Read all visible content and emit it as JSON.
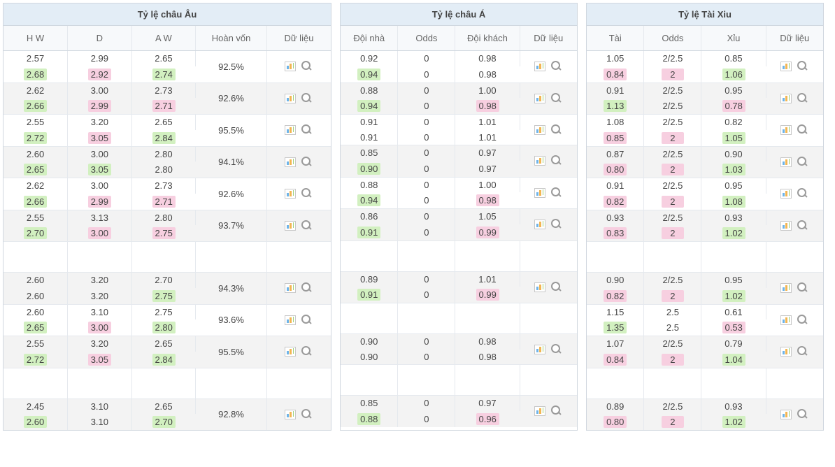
{
  "colors": {
    "header_bg": "#e3edf6",
    "subheader_bg": "#f7f9fb",
    "zebra_bg": "#f3f3f3",
    "border": "#d0d7df",
    "cell_border": "#e5e9ee",
    "highlight_up_bg": "#d2f0c0",
    "highlight_down_bg": "#f7cfe0",
    "text": "#444"
  },
  "eu": {
    "title": "Tỷ lệ châu Âu",
    "cols": {
      "hw": "H W",
      "d": "D",
      "aw": "A W",
      "payout": "Hoàn vốn",
      "data": "Dữ liệu"
    },
    "col_widths": {
      "hw": 90,
      "d": 90,
      "aw": 90,
      "payout": 100,
      "data": 90
    },
    "rows": [
      {
        "empty": false,
        "zebra": false,
        "payout": "92.5%",
        "a": {
          "hw": {
            "v": "2.57"
          },
          "d": {
            "v": "2.99"
          },
          "aw": {
            "v": "2.65"
          }
        },
        "b": {
          "hw": {
            "v": "2.68",
            "c": "up"
          },
          "d": {
            "v": "2.92",
            "c": "dn"
          },
          "aw": {
            "v": "2.74",
            "c": "up"
          }
        }
      },
      {
        "empty": false,
        "zebra": true,
        "payout": "92.6%",
        "a": {
          "hw": {
            "v": "2.62"
          },
          "d": {
            "v": "3.00"
          },
          "aw": {
            "v": "2.73"
          }
        },
        "b": {
          "hw": {
            "v": "2.66",
            "c": "up"
          },
          "d": {
            "v": "2.99",
            "c": "dn"
          },
          "aw": {
            "v": "2.71",
            "c": "dn"
          }
        }
      },
      {
        "empty": false,
        "zebra": false,
        "payout": "95.5%",
        "a": {
          "hw": {
            "v": "2.55"
          },
          "d": {
            "v": "3.20"
          },
          "aw": {
            "v": "2.65"
          }
        },
        "b": {
          "hw": {
            "v": "2.72",
            "c": "up"
          },
          "d": {
            "v": "3.05",
            "c": "dn"
          },
          "aw": {
            "v": "2.84",
            "c": "up"
          }
        }
      },
      {
        "empty": false,
        "zebra": true,
        "payout": "94.1%",
        "a": {
          "hw": {
            "v": "2.60"
          },
          "d": {
            "v": "3.00"
          },
          "aw": {
            "v": "2.80"
          }
        },
        "b": {
          "hw": {
            "v": "2.65",
            "c": "up"
          },
          "d": {
            "v": "3.05",
            "c": "up"
          },
          "aw": {
            "v": "2.80"
          }
        }
      },
      {
        "empty": false,
        "zebra": false,
        "payout": "92.6%",
        "a": {
          "hw": {
            "v": "2.62"
          },
          "d": {
            "v": "3.00"
          },
          "aw": {
            "v": "2.73"
          }
        },
        "b": {
          "hw": {
            "v": "2.66",
            "c": "up"
          },
          "d": {
            "v": "2.99",
            "c": "dn"
          },
          "aw": {
            "v": "2.71",
            "c": "dn"
          }
        }
      },
      {
        "empty": false,
        "zebra": true,
        "payout": "93.7%",
        "a": {
          "hw": {
            "v": "2.55"
          },
          "d": {
            "v": "3.13"
          },
          "aw": {
            "v": "2.80"
          }
        },
        "b": {
          "hw": {
            "v": "2.70",
            "c": "up"
          },
          "d": {
            "v": "3.00",
            "c": "dn"
          },
          "aw": {
            "v": "2.75",
            "c": "dn"
          }
        }
      },
      {
        "empty": true,
        "zebra": false
      },
      {
        "empty": false,
        "zebra": true,
        "payout": "94.3%",
        "a": {
          "hw": {
            "v": "2.60"
          },
          "d": {
            "v": "3.20"
          },
          "aw": {
            "v": "2.70"
          }
        },
        "b": {
          "hw": {
            "v": "2.60"
          },
          "d": {
            "v": "3.20"
          },
          "aw": {
            "v": "2.75",
            "c": "up"
          }
        }
      },
      {
        "empty": false,
        "zebra": false,
        "payout": "93.6%",
        "a": {
          "hw": {
            "v": "2.60"
          },
          "d": {
            "v": "3.10"
          },
          "aw": {
            "v": "2.75"
          }
        },
        "b": {
          "hw": {
            "v": "2.65",
            "c": "up"
          },
          "d": {
            "v": "3.00",
            "c": "dn"
          },
          "aw": {
            "v": "2.80",
            "c": "up"
          }
        }
      },
      {
        "empty": false,
        "zebra": true,
        "payout": "95.5%",
        "a": {
          "hw": {
            "v": "2.55"
          },
          "d": {
            "v": "3.20"
          },
          "aw": {
            "v": "2.65"
          }
        },
        "b": {
          "hw": {
            "v": "2.72",
            "c": "up"
          },
          "d": {
            "v": "3.05",
            "c": "dn"
          },
          "aw": {
            "v": "2.84",
            "c": "up"
          }
        }
      },
      {
        "empty": true,
        "zebra": false
      },
      {
        "empty": false,
        "zebra": true,
        "payout": "92.8%",
        "a": {
          "hw": {
            "v": "2.45"
          },
          "d": {
            "v": "3.10"
          },
          "aw": {
            "v": "2.65"
          }
        },
        "b": {
          "hw": {
            "v": "2.60",
            "c": "up"
          },
          "d": {
            "v": "3.10"
          },
          "aw": {
            "v": "2.70",
            "c": "up"
          }
        }
      }
    ]
  },
  "asia": {
    "title": "Tỷ lệ châu Á",
    "cols": {
      "home": "Đội nhà",
      "odds": "Odds",
      "away": "Đội khách",
      "data": "Dữ liệu"
    },
    "col_widths": {
      "home": 80,
      "odds": 80,
      "away": 90,
      "data": 80
    },
    "rows": [
      {
        "empty": false,
        "zebra": false,
        "a": {
          "h": {
            "v": "0.92"
          },
          "o": {
            "v": "0"
          },
          "aw": {
            "v": "0.98"
          }
        },
        "b": {
          "h": {
            "v": "0.94",
            "c": "up"
          },
          "o": {
            "v": "0"
          },
          "aw": {
            "v": "0.98"
          }
        }
      },
      {
        "empty": false,
        "zebra": true,
        "a": {
          "h": {
            "v": "0.88"
          },
          "o": {
            "v": "0"
          },
          "aw": {
            "v": "1.00"
          }
        },
        "b": {
          "h": {
            "v": "0.94",
            "c": "up"
          },
          "o": {
            "v": "0"
          },
          "aw": {
            "v": "0.98",
            "c": "dn"
          }
        }
      },
      {
        "empty": false,
        "zebra": false,
        "a": {
          "h": {
            "v": "0.91"
          },
          "o": {
            "v": "0"
          },
          "aw": {
            "v": "1.01"
          }
        },
        "b": {
          "h": {
            "v": "0.91"
          },
          "o": {
            "v": "0"
          },
          "aw": {
            "v": "1.01"
          }
        }
      },
      {
        "empty": false,
        "zebra": true,
        "a": {
          "h": {
            "v": "0.85"
          },
          "o": {
            "v": "0"
          },
          "aw": {
            "v": "0.97"
          }
        },
        "b": {
          "h": {
            "v": "0.90",
            "c": "up"
          },
          "o": {
            "v": "0"
          },
          "aw": {
            "v": "0.97"
          }
        }
      },
      {
        "empty": false,
        "zebra": false,
        "a": {
          "h": {
            "v": "0.88"
          },
          "o": {
            "v": "0"
          },
          "aw": {
            "v": "1.00"
          }
        },
        "b": {
          "h": {
            "v": "0.94",
            "c": "up"
          },
          "o": {
            "v": "0"
          },
          "aw": {
            "v": "0.98",
            "c": "dn"
          }
        }
      },
      {
        "empty": false,
        "zebra": true,
        "a": {
          "h": {
            "v": "0.86"
          },
          "o": {
            "v": "0"
          },
          "aw": {
            "v": "1.05"
          }
        },
        "b": {
          "h": {
            "v": "0.91",
            "c": "up"
          },
          "o": {
            "v": "0"
          },
          "aw": {
            "v": "0.99",
            "c": "dn"
          }
        }
      },
      {
        "empty": true,
        "zebra": false
      },
      {
        "empty": false,
        "zebra": true,
        "a": {
          "h": {
            "v": "0.89"
          },
          "o": {
            "v": "0"
          },
          "aw": {
            "v": "1.01"
          }
        },
        "b": {
          "h": {
            "v": "0.91",
            "c": "up"
          },
          "o": {
            "v": "0"
          },
          "aw": {
            "v": "0.99",
            "c": "dn"
          }
        }
      },
      {
        "empty": true,
        "zebra": false
      },
      {
        "empty": false,
        "zebra": true,
        "a": {
          "h": {
            "v": "0.90"
          },
          "o": {
            "v": "0"
          },
          "aw": {
            "v": "0.98"
          }
        },
        "b": {
          "h": {
            "v": "0.90"
          },
          "o": {
            "v": "0"
          },
          "aw": {
            "v": "0.98"
          }
        }
      },
      {
        "empty": true,
        "zebra": false
      },
      {
        "empty": false,
        "zebra": true,
        "a": {
          "h": {
            "v": "0.85"
          },
          "o": {
            "v": "0"
          },
          "aw": {
            "v": "0.97"
          }
        },
        "b": {
          "h": {
            "v": "0.88",
            "c": "up"
          },
          "o": {
            "v": "0"
          },
          "aw": {
            "v": "0.96",
            "c": "dn"
          }
        }
      }
    ]
  },
  "ou": {
    "title": "Tỷ lệ Tài Xiu",
    "cols": {
      "over": "Tài",
      "odds": "Odds",
      "under": "Xỉu",
      "data": "Dữ liệu"
    },
    "col_widths": {
      "over": 80,
      "odds": 80,
      "under": 90,
      "data": 80
    },
    "rows": [
      {
        "empty": false,
        "zebra": false,
        "a": {
          "ov": {
            "v": "1.05"
          },
          "o": {
            "v": "2/2.5"
          },
          "un": {
            "v": "0.85"
          }
        },
        "b": {
          "ov": {
            "v": "0.84",
            "c": "dn"
          },
          "o": {
            "v": "2",
            "c": "dn"
          },
          "un": {
            "v": "1.06",
            "c": "up"
          }
        }
      },
      {
        "empty": false,
        "zebra": true,
        "a": {
          "ov": {
            "v": "0.91"
          },
          "o": {
            "v": "2/2.5"
          },
          "un": {
            "v": "0.95"
          }
        },
        "b": {
          "ov": {
            "v": "1.13",
            "c": "up"
          },
          "o": {
            "v": "2/2.5"
          },
          "un": {
            "v": "0.78",
            "c": "dn"
          }
        }
      },
      {
        "empty": false,
        "zebra": false,
        "a": {
          "ov": {
            "v": "1.08"
          },
          "o": {
            "v": "2/2.5"
          },
          "un": {
            "v": "0.82"
          }
        },
        "b": {
          "ov": {
            "v": "0.85",
            "c": "dn"
          },
          "o": {
            "v": "2",
            "c": "dn"
          },
          "un": {
            "v": "1.05",
            "c": "up"
          }
        }
      },
      {
        "empty": false,
        "zebra": true,
        "a": {
          "ov": {
            "v": "0.87"
          },
          "o": {
            "v": "2/2.5"
          },
          "un": {
            "v": "0.90"
          }
        },
        "b": {
          "ov": {
            "v": "0.80",
            "c": "dn"
          },
          "o": {
            "v": "2",
            "c": "dn"
          },
          "un": {
            "v": "1.03",
            "c": "up"
          }
        }
      },
      {
        "empty": false,
        "zebra": false,
        "a": {
          "ov": {
            "v": "0.91"
          },
          "o": {
            "v": "2/2.5"
          },
          "un": {
            "v": "0.95"
          }
        },
        "b": {
          "ov": {
            "v": "0.82",
            "c": "dn"
          },
          "o": {
            "v": "2",
            "c": "dn"
          },
          "un": {
            "v": "1.08",
            "c": "up"
          }
        }
      },
      {
        "empty": false,
        "zebra": true,
        "a": {
          "ov": {
            "v": "0.93"
          },
          "o": {
            "v": "2/2.5"
          },
          "un": {
            "v": "0.93"
          }
        },
        "b": {
          "ov": {
            "v": "0.83",
            "c": "dn"
          },
          "o": {
            "v": "2",
            "c": "dn"
          },
          "un": {
            "v": "1.02",
            "c": "up"
          }
        }
      },
      {
        "empty": true,
        "zebra": false
      },
      {
        "empty": false,
        "zebra": true,
        "a": {
          "ov": {
            "v": "0.90"
          },
          "o": {
            "v": "2/2.5"
          },
          "un": {
            "v": "0.95"
          }
        },
        "b": {
          "ov": {
            "v": "0.82",
            "c": "dn"
          },
          "o": {
            "v": "2",
            "c": "dn"
          },
          "un": {
            "v": "1.02",
            "c": "up"
          }
        }
      },
      {
        "empty": false,
        "zebra": false,
        "a": {
          "ov": {
            "v": "1.15"
          },
          "o": {
            "v": "2.5"
          },
          "un": {
            "v": "0.61"
          }
        },
        "b": {
          "ov": {
            "v": "1.35",
            "c": "up"
          },
          "o": {
            "v": "2.5"
          },
          "un": {
            "v": "0.53",
            "c": "dn"
          }
        }
      },
      {
        "empty": false,
        "zebra": true,
        "a": {
          "ov": {
            "v": "1.07"
          },
          "o": {
            "v": "2/2.5"
          },
          "un": {
            "v": "0.79"
          }
        },
        "b": {
          "ov": {
            "v": "0.84",
            "c": "dn"
          },
          "o": {
            "v": "2",
            "c": "dn"
          },
          "un": {
            "v": "1.04",
            "c": "up"
          }
        }
      },
      {
        "empty": true,
        "zebra": false
      },
      {
        "empty": false,
        "zebra": true,
        "a": {
          "ov": {
            "v": "0.89"
          },
          "o": {
            "v": "2/2.5"
          },
          "un": {
            "v": "0.93"
          }
        },
        "b": {
          "ov": {
            "v": "0.80",
            "c": "dn"
          },
          "o": {
            "v": "2",
            "c": "dn"
          },
          "un": {
            "v": "1.02",
            "c": "up"
          }
        }
      }
    ]
  }
}
